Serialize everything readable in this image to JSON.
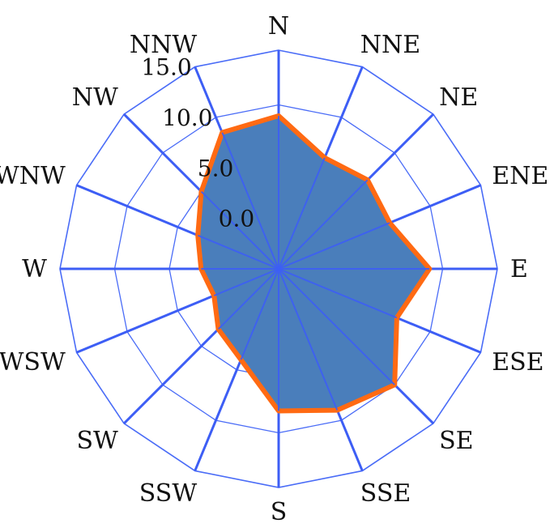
{
  "chart_data": {
    "type": "radar",
    "title": "",
    "directions": [
      "N",
      "NNE",
      "NE",
      "ENE",
      "E",
      "ESE",
      "SE",
      "SSE",
      "S",
      "SSW",
      "SW",
      "WSW",
      "W",
      "WNW",
      "NW",
      "NNW"
    ],
    "series": [
      {
        "values": [
          9.0,
          6.0,
          6.5,
          6.0,
          8.8,
          6.7,
          10.0,
          9.0,
          8.0,
          4.0,
          2.8,
          1.4,
          2.1,
          3.0,
          5.0,
          8.5
        ]
      }
    ],
    "radial_ticks": [
      "0.0",
      "5.0",
      "10.0",
      "15.0"
    ],
    "rmin": -5,
    "rmax": 15,
    "grid": true,
    "colors": {
      "fill": "#4a7ebb",
      "stroke": "#ff6a13",
      "grid": "#4a6cf7",
      "spoke": "#3d5ef5"
    }
  }
}
